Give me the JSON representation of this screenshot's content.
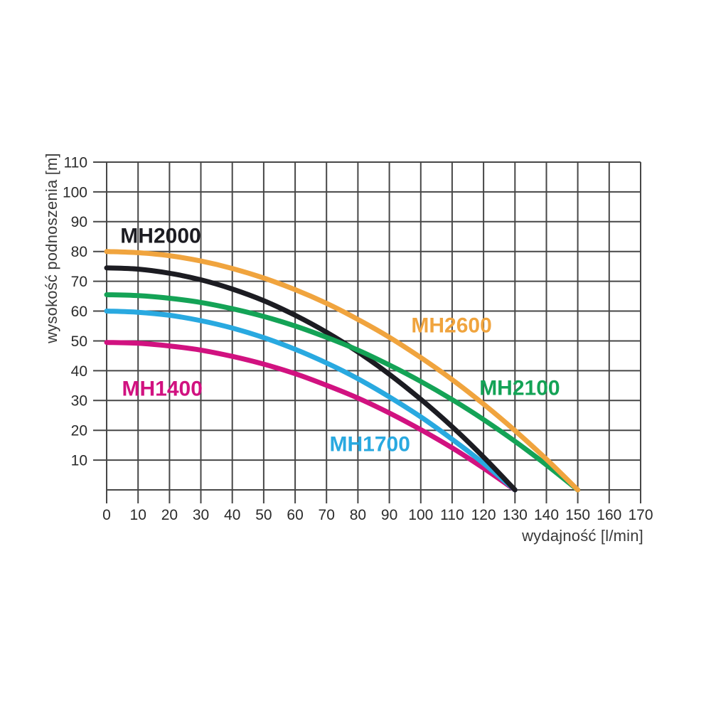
{
  "page": {
    "background_color": "#ffffff"
  },
  "chart_data": {
    "type": "line",
    "title": "",
    "xlabel": "wydajność [l/min]",
    "ylabel": "wysokość podnoszenia [m]",
    "xlim": [
      0,
      170
    ],
    "ylim": [
      0,
      110
    ],
    "x_ticks": [
      0,
      10,
      20,
      30,
      40,
      50,
      60,
      70,
      80,
      90,
      100,
      110,
      120,
      130,
      140,
      150,
      160,
      170
    ],
    "y_ticks": [
      10,
      20,
      30,
      40,
      50,
      60,
      70,
      80,
      90,
      100,
      110
    ],
    "grid": "on",
    "grid_color": "#474747",
    "tick_label_color": "#2b2b2b",
    "axis_title_color": "#3a3a3a",
    "legend_position": "labels-on-plot",
    "series": [
      {
        "name": "MH1400",
        "color": "#d11280",
        "label_at": [
          17.7,
          34.1
        ],
        "points": [
          [
            0,
            49.5
          ],
          [
            10,
            49.2
          ],
          [
            20,
            48.3
          ],
          [
            30,
            46.9
          ],
          [
            40,
            44.8
          ],
          [
            50,
            42.2
          ],
          [
            60,
            39.0
          ],
          [
            70,
            35.1
          ],
          [
            80,
            30.8
          ],
          [
            90,
            25.8
          ],
          [
            100,
            20.2
          ],
          [
            110,
            14.1
          ],
          [
            120,
            7.3
          ],
          [
            130,
            0
          ]
        ]
      },
      {
        "name": "MH1700",
        "color": "#29a9e0",
        "label_at": [
          83.8,
          15.5
        ],
        "points": [
          [
            0,
            60
          ],
          [
            10,
            59.6
          ],
          [
            20,
            58.6
          ],
          [
            30,
            56.8
          ],
          [
            40,
            54.3
          ],
          [
            50,
            51.1
          ],
          [
            60,
            47.2
          ],
          [
            70,
            42.6
          ],
          [
            80,
            37.3
          ],
          [
            90,
            31.2
          ],
          [
            100,
            24.5
          ],
          [
            110,
            17.0
          ],
          [
            120,
            8.9
          ],
          [
            130,
            0
          ]
        ]
      },
      {
        "name": "MH2000",
        "color": "#1c1c22",
        "label_at": [
          17.2,
          85.4
        ],
        "points": [
          [
            0,
            74.5
          ],
          [
            10,
            74.1
          ],
          [
            20,
            72.7
          ],
          [
            30,
            70.5
          ],
          [
            40,
            67.4
          ],
          [
            50,
            63.5
          ],
          [
            60,
            58.6
          ],
          [
            70,
            52.9
          ],
          [
            80,
            46.3
          ],
          [
            90,
            38.8
          ],
          [
            100,
            30.4
          ],
          [
            110,
            21.2
          ],
          [
            120,
            11.0
          ],
          [
            130,
            0
          ]
        ]
      },
      {
        "name": "MH2100",
        "color": "#14a356",
        "label_at": [
          131.5,
          34.4
        ],
        "points": [
          [
            0,
            65.5
          ],
          [
            10,
            65.2
          ],
          [
            20,
            64.3
          ],
          [
            30,
            62.9
          ],
          [
            40,
            60.8
          ],
          [
            50,
            58.2
          ],
          [
            60,
            55.0
          ],
          [
            70,
            51.2
          ],
          [
            80,
            46.9
          ],
          [
            90,
            41.9
          ],
          [
            100,
            36.4
          ],
          [
            110,
            30.3
          ],
          [
            120,
            23.6
          ],
          [
            130,
            16.3
          ],
          [
            140,
            8.4
          ],
          [
            150,
            0
          ]
        ]
      },
      {
        "name": "MH2600",
        "color": "#f0a43e",
        "label_at": [
          109.8,
          55.4
        ],
        "points": [
          [
            0,
            80
          ],
          [
            10,
            79.6
          ],
          [
            20,
            78.6
          ],
          [
            30,
            76.8
          ],
          [
            40,
            74.3
          ],
          [
            50,
            71.1
          ],
          [
            60,
            67.2
          ],
          [
            70,
            62.6
          ],
          [
            80,
            57.2
          ],
          [
            90,
            51.2
          ],
          [
            100,
            44.4
          ],
          [
            110,
            37.0
          ],
          [
            120,
            28.8
          ],
          [
            130,
            19.9
          ],
          [
            140,
            10.3
          ],
          [
            150,
            0
          ]
        ]
      }
    ]
  }
}
